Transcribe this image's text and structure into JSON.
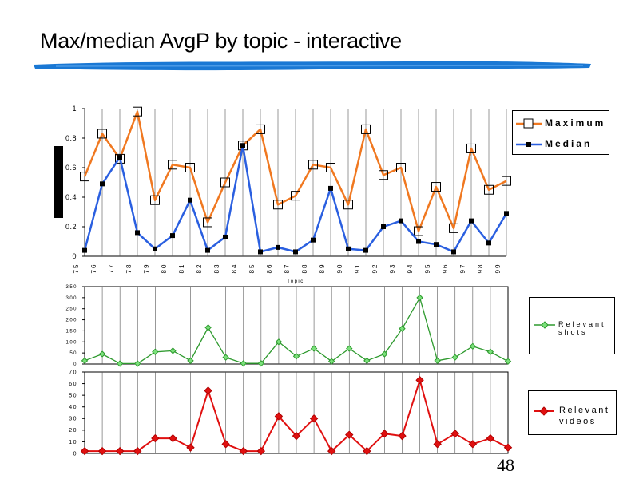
{
  "slide": {
    "title": "Max/median AvgP by topic - interactive",
    "page_number": "48",
    "accent_color": "#1a78d4"
  },
  "chart_data": [
    {
      "type": "line",
      "categories": [
        "75",
        "76",
        "77",
        "78",
        "79",
        "80",
        "81",
        "82",
        "83",
        "84",
        "85",
        "86",
        "87",
        "88",
        "89",
        "90",
        "91",
        "92",
        "93",
        "94",
        "95",
        "96",
        "97",
        "98",
        "99"
      ],
      "xlabel": "Topic",
      "ylim": [
        0,
        1
      ],
      "yticks": [
        "0",
        "0.2",
        "0.4",
        "0.6",
        "0.8",
        "1"
      ],
      "series": [
        {
          "name": "Maximum",
          "color": "#f07820",
          "marker": "hollow-square",
          "values": [
            0.54,
            0.83,
            0.66,
            0.98,
            0.38,
            0.62,
            0.6,
            0.23,
            0.5,
            0.75,
            0.86,
            0.35,
            0.41,
            0.62,
            0.6,
            0.35,
            0.86,
            0.55,
            0.6,
            0.17,
            0.47,
            0.19,
            0.73,
            0.45,
            0.51
          ]
        },
        {
          "name": "Median",
          "color": "#2a5fe0",
          "marker": "filled-square",
          "values": [
            0.04,
            0.49,
            0.67,
            0.16,
            0.05,
            0.14,
            0.38,
            0.04,
            0.13,
            0.75,
            0.03,
            0.06,
            0.03,
            0.11,
            0.46,
            0.05,
            0.04,
            0.2,
            0.24,
            0.1,
            0.08,
            0.03,
            0.24,
            0.09,
            0.29
          ]
        }
      ],
      "legend": "right",
      "grid": "vertical"
    },
    {
      "type": "line",
      "categories": [
        "75",
        "76",
        "77",
        "78",
        "79",
        "80",
        "81",
        "82",
        "83",
        "84",
        "85",
        "86",
        "87",
        "88",
        "89",
        "90",
        "91",
        "92",
        "93",
        "94",
        "95",
        "96",
        "97",
        "98",
        "99"
      ],
      "ylim": [
        0,
        350
      ],
      "yticks": [
        "0",
        "50",
        "100",
        "150",
        "200",
        "250",
        "300",
        "350"
      ],
      "series": [
        {
          "name": "Relevant shots",
          "color": "#2e9a2e",
          "marker": "diamond",
          "values": [
            15,
            45,
            2,
            2,
            55,
            60,
            15,
            165,
            30,
            3,
            3,
            100,
            35,
            70,
            12,
            70,
            15,
            45,
            160,
            300,
            15,
            30,
            80,
            55,
            12
          ]
        }
      ],
      "legend": "right",
      "grid": "vertical"
    },
    {
      "type": "line",
      "categories": [
        "75",
        "76",
        "77",
        "78",
        "79",
        "80",
        "81",
        "82",
        "83",
        "84",
        "85",
        "86",
        "87",
        "88",
        "89",
        "90",
        "91",
        "92",
        "93",
        "94",
        "95",
        "96",
        "97",
        "98",
        "99"
      ],
      "ylim": [
        0,
        70
      ],
      "yticks": [
        "0",
        "10",
        "20",
        "30",
        "40",
        "50",
        "60",
        "70"
      ],
      "series": [
        {
          "name": "Relevant videos",
          "color": "#e01010",
          "marker": "diamond",
          "values": [
            2,
            2,
            2,
            2,
            13,
            13,
            5,
            54,
            8,
            2,
            2,
            32,
            15,
            30,
            2,
            16,
            2,
            17,
            15,
            63,
            8,
            17,
            8,
            13,
            5
          ]
        }
      ],
      "legend": "right",
      "grid": "vertical"
    }
  ],
  "legends": {
    "max_label": "Maximum",
    "median_label": "Median",
    "shots_line1": "Relevant",
    "shots_line2": "shots",
    "videos_line1": "Relevant",
    "videos_line2": "videos"
  }
}
